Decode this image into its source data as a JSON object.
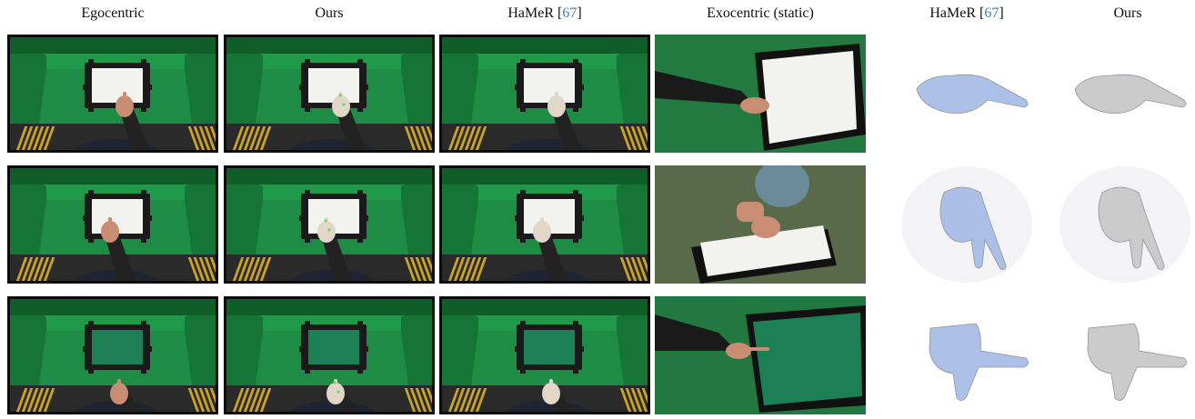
{
  "headers": [
    {
      "text": "Egocentric",
      "cite": ""
    },
    {
      "text": "Ours",
      "cite": ""
    },
    {
      "text": "HaMeR [",
      "cite": "67",
      "close": "]"
    },
    {
      "text": "Exocentric (static)",
      "cite": ""
    },
    {
      "text": "HaMeR [",
      "cite": "67",
      "close": "]"
    },
    {
      "text": "Ours",
      "cite": ""
    }
  ],
  "colors": {
    "green_screen": "#1f9a4a",
    "green_dark": "#0f5e2a",
    "table": "#1e8c44",
    "paper": "#f2f2ee",
    "frame": "#1a1a1a",
    "skin": "#c98d74",
    "mesh_skin": "#e2d6c8",
    "hamer_mesh": "#a9bde6",
    "ours_mesh": "#c9c9c9",
    "citation": "#3d7fc1"
  },
  "rows": [
    {
      "name": "row-1"
    },
    {
      "name": "row-2"
    },
    {
      "name": "row-3"
    }
  ]
}
